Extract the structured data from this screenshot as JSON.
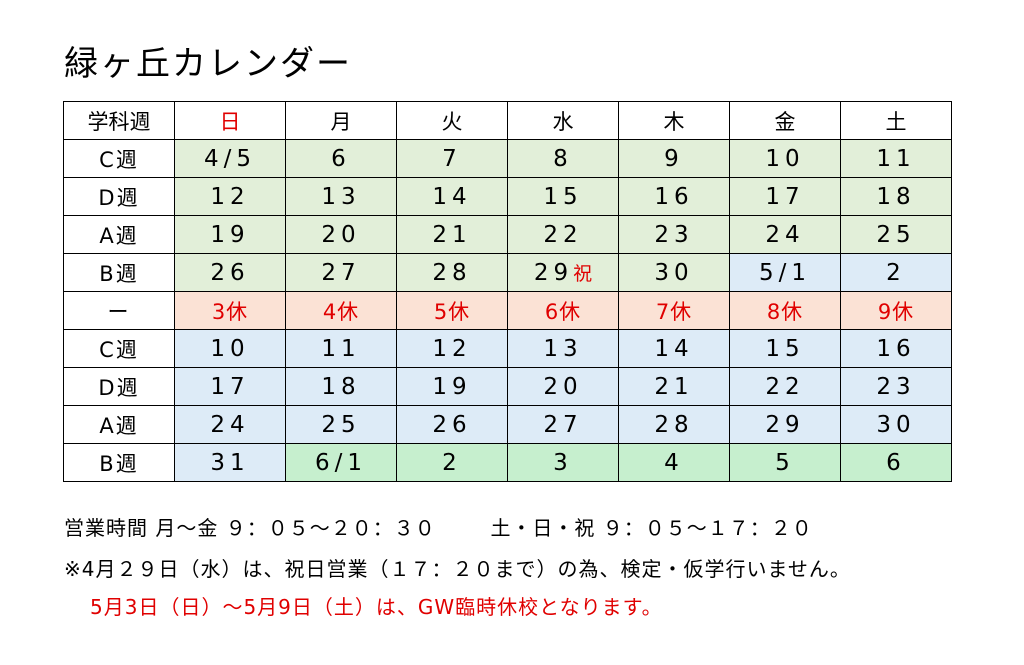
{
  "title": "緑ヶ丘カレンダー",
  "headers": [
    "学科週",
    "日",
    "月",
    "火",
    "水",
    "木",
    "金",
    "土"
  ],
  "rows": [
    {
      "week": "C週",
      "days": [
        "4/5",
        "6",
        "7",
        "8",
        "9",
        "10",
        "11"
      ]
    },
    {
      "week": "D週",
      "days": [
        "12",
        "13",
        "14",
        "15",
        "16",
        "17",
        "18"
      ]
    },
    {
      "week": "A週",
      "days": [
        "19",
        "20",
        "21",
        "22",
        "23",
        "24",
        "25"
      ]
    },
    {
      "week": "B週",
      "days": [
        "26",
        "27",
        "28",
        "29",
        "30",
        "5/1",
        "2"
      ],
      "holiday_mark": "祝"
    },
    {
      "week": "ー",
      "days": [
        "3休",
        "4休",
        "5休",
        "6休",
        "7休",
        "8休",
        "9休"
      ]
    },
    {
      "week": "C週",
      "days": [
        "10",
        "11",
        "12",
        "13",
        "14",
        "15",
        "16"
      ]
    },
    {
      "week": "D週",
      "days": [
        "17",
        "18",
        "19",
        "20",
        "21",
        "22",
        "23"
      ]
    },
    {
      "week": "A週",
      "days": [
        "24",
        "25",
        "26",
        "27",
        "28",
        "29",
        "30"
      ]
    },
    {
      "week": "B週",
      "days": [
        "31",
        "6/1",
        "2",
        "3",
        "4",
        "5",
        "6"
      ]
    }
  ],
  "footer": {
    "hours_label": "営業時間",
    "weekday_hours": "月〜金 ９：０５〜２０：３０",
    "weekend_hours": "土・日・祝 ９：０５〜１７：２０",
    "note1": "※4月２９日（水）は、祝日営業（１７：２０まで）の為、検定・仮学行いません。",
    "note2": "5月3日（日）〜5月9日（土）は、GW臨時休校となります。"
  },
  "colors": {
    "april_green": "#e2efd9",
    "may_blue": "#ddebf7",
    "closed_pink": "#fbe2d5",
    "june_green": "#c6efce",
    "red_text": "#e00000"
  }
}
